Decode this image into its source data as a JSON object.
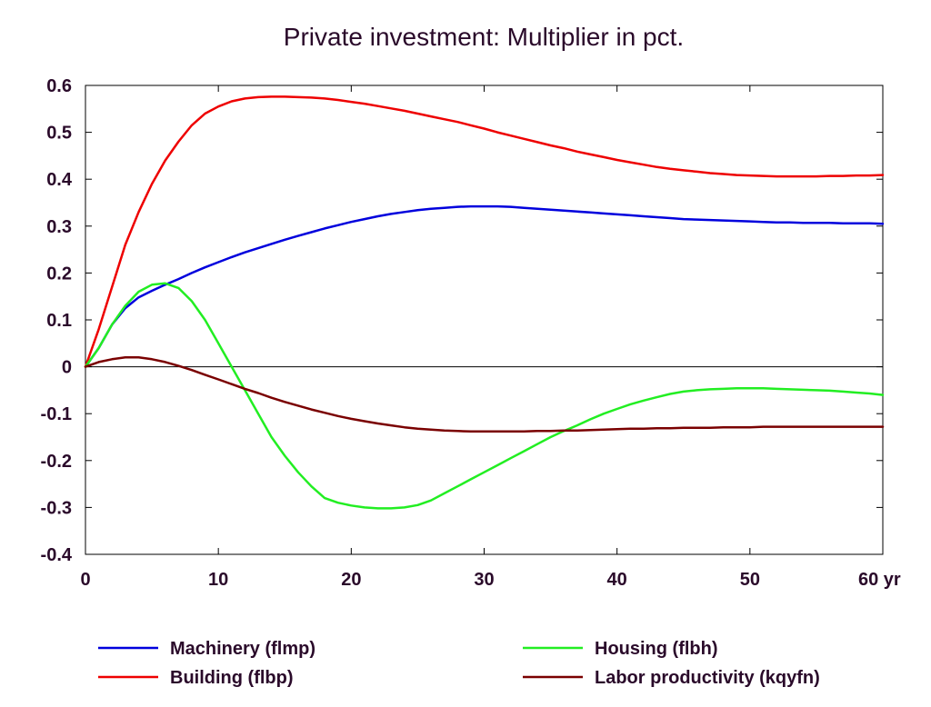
{
  "chart_data": {
    "type": "line",
    "title": "Private investment: Multiplier in pct.",
    "xlabel": "",
    "ylabel": "",
    "x_unit": "yr",
    "xlim": [
      0,
      60
    ],
    "ylim": [
      -0.4,
      0.6
    ],
    "x_ticks": [
      0,
      10,
      20,
      30,
      40,
      50,
      60
    ],
    "x_tick_labels": [
      "0",
      "10",
      "20",
      "30",
      "40",
      "50",
      "60 yr"
    ],
    "y_ticks": [
      -0.4,
      -0.3,
      -0.2,
      -0.1,
      0,
      0.1,
      0.2,
      0.3,
      0.4,
      0.5,
      0.6
    ],
    "y_tick_labels": [
      "-0.4",
      "-0.3",
      "-0.2",
      "-0.1",
      "0",
      "0.1",
      "0.2",
      "0.3",
      "0.4",
      "0.5",
      "0.6"
    ],
    "grid": false,
    "zero_line": true,
    "legend_position": "bottom",
    "x": [
      0,
      1,
      2,
      3,
      4,
      5,
      6,
      7,
      8,
      9,
      10,
      11,
      12,
      13,
      14,
      15,
      16,
      17,
      18,
      19,
      20,
      21,
      22,
      23,
      24,
      25,
      26,
      27,
      28,
      29,
      30,
      31,
      32,
      33,
      34,
      35,
      36,
      37,
      38,
      39,
      40,
      41,
      42,
      43,
      44,
      45,
      46,
      47,
      48,
      49,
      50,
      51,
      52,
      53,
      54,
      55,
      56,
      57,
      58,
      59,
      60
    ],
    "series": [
      {
        "name": "Machinery (flmp)",
        "color": "#0000dd",
        "values": [
          0.0,
          0.04,
          0.09,
          0.125,
          0.148,
          0.162,
          0.175,
          0.187,
          0.2,
          0.212,
          0.223,
          0.234,
          0.244,
          0.253,
          0.262,
          0.271,
          0.279,
          0.287,
          0.295,
          0.302,
          0.309,
          0.315,
          0.321,
          0.326,
          0.33,
          0.334,
          0.337,
          0.339,
          0.341,
          0.342,
          0.342,
          0.342,
          0.341,
          0.339,
          0.337,
          0.335,
          0.333,
          0.331,
          0.329,
          0.327,
          0.325,
          0.323,
          0.321,
          0.319,
          0.317,
          0.315,
          0.314,
          0.313,
          0.312,
          0.311,
          0.31,
          0.309,
          0.308,
          0.308,
          0.307,
          0.307,
          0.307,
          0.306,
          0.306,
          0.306,
          0.305
        ]
      },
      {
        "name": "Building (flbp)",
        "color": "#ee0000",
        "values": [
          0.0,
          0.08,
          0.17,
          0.26,
          0.33,
          0.39,
          0.44,
          0.48,
          0.515,
          0.54,
          0.555,
          0.566,
          0.572,
          0.575,
          0.576,
          0.576,
          0.575,
          0.574,
          0.572,
          0.569,
          0.565,
          0.561,
          0.556,
          0.551,
          0.546,
          0.54,
          0.534,
          0.528,
          0.522,
          0.515,
          0.508,
          0.5,
          0.493,
          0.486,
          0.479,
          0.472,
          0.466,
          0.459,
          0.453,
          0.447,
          0.441,
          0.436,
          0.431,
          0.426,
          0.422,
          0.419,
          0.416,
          0.413,
          0.411,
          0.409,
          0.408,
          0.407,
          0.406,
          0.406,
          0.406,
          0.406,
          0.407,
          0.407,
          0.408,
          0.408,
          0.409
        ]
      },
      {
        "name": "Housing (flbh)",
        "color": "#22ee22",
        "values": [
          0.0,
          0.04,
          0.09,
          0.13,
          0.16,
          0.175,
          0.178,
          0.168,
          0.14,
          0.1,
          0.05,
          0.0,
          -0.05,
          -0.1,
          -0.15,
          -0.19,
          -0.225,
          -0.255,
          -0.28,
          -0.29,
          -0.296,
          -0.3,
          -0.302,
          -0.302,
          -0.3,
          -0.295,
          -0.285,
          -0.27,
          -0.255,
          -0.24,
          -0.225,
          -0.21,
          -0.195,
          -0.18,
          -0.165,
          -0.15,
          -0.137,
          -0.125,
          -0.112,
          -0.1,
          -0.09,
          -0.08,
          -0.072,
          -0.065,
          -0.058,
          -0.053,
          -0.05,
          -0.048,
          -0.047,
          -0.046,
          -0.046,
          -0.046,
          -0.047,
          -0.048,
          -0.049,
          -0.05,
          -0.051,
          -0.053,
          -0.055,
          -0.057,
          -0.06
        ]
      },
      {
        "name": "Labor productivity (kqyfn)",
        "color": "#7a0000",
        "values": [
          0.0,
          0.01,
          0.016,
          0.02,
          0.02,
          0.016,
          0.01,
          0.002,
          -0.007,
          -0.017,
          -0.027,
          -0.037,
          -0.047,
          -0.056,
          -0.066,
          -0.075,
          -0.083,
          -0.091,
          -0.098,
          -0.105,
          -0.111,
          -0.116,
          -0.121,
          -0.125,
          -0.129,
          -0.132,
          -0.134,
          -0.136,
          -0.137,
          -0.138,
          -0.138,
          -0.138,
          -0.138,
          -0.138,
          -0.137,
          -0.137,
          -0.136,
          -0.136,
          -0.135,
          -0.134,
          -0.133,
          -0.132,
          -0.132,
          -0.131,
          -0.131,
          -0.13,
          -0.13,
          -0.13,
          -0.129,
          -0.129,
          -0.129,
          -0.128,
          -0.128,
          -0.128,
          -0.128,
          -0.128,
          -0.128,
          -0.128,
          -0.128,
          -0.128,
          -0.128
        ]
      }
    ]
  }
}
